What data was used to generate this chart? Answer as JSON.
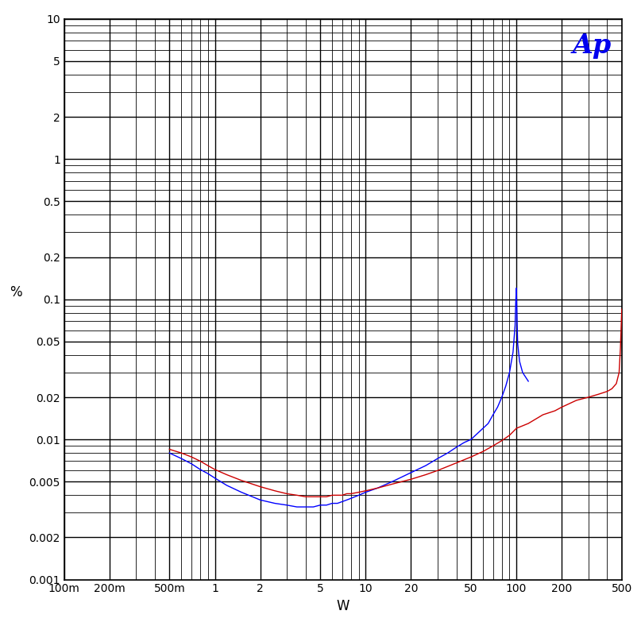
{
  "xlabel": "W",
  "ylabel": "%",
  "xmin": 0.1,
  "xmax": 500,
  "ymin": 0.001,
  "ymax": 10,
  "ap_logo_text": "Ap",
  "blue_curve": {
    "color": "#0000FF",
    "x": [
      0.5,
      0.6,
      0.7,
      0.8,
      0.9,
      1.0,
      1.2,
      1.5,
      2.0,
      2.5,
      3.0,
      3.5,
      4.0,
      4.5,
      5.0,
      5.5,
      6.0,
      6.5,
      7.0,
      7.5,
      8.0,
      9.0,
      10.0,
      12.0,
      15.0,
      20.0,
      25.0,
      30.0,
      35.0,
      40.0,
      45.0,
      50.0,
      55.0,
      60.0,
      65.0,
      70.0,
      75.0,
      80.0,
      85.0,
      90.0,
      95.0,
      98.0,
      99.0,
      100.0,
      101.0,
      102.0,
      105.0,
      110.0,
      120.0
    ],
    "y": [
      0.008,
      0.0073,
      0.0067,
      0.0061,
      0.0057,
      0.0053,
      0.0047,
      0.0042,
      0.0037,
      0.0035,
      0.0034,
      0.0033,
      0.0033,
      0.0033,
      0.0034,
      0.0034,
      0.0035,
      0.0035,
      0.0036,
      0.0037,
      0.0038,
      0.004,
      0.0042,
      0.0045,
      0.005,
      0.0058,
      0.0065,
      0.0073,
      0.008,
      0.0088,
      0.0095,
      0.01,
      0.011,
      0.012,
      0.013,
      0.015,
      0.017,
      0.02,
      0.024,
      0.03,
      0.042,
      0.065,
      0.095,
      0.12,
      0.07,
      0.048,
      0.036,
      0.03,
      0.026
    ]
  },
  "red_curve": {
    "color": "#CC0000",
    "x": [
      0.5,
      0.6,
      0.7,
      0.8,
      0.9,
      1.0,
      1.2,
      1.5,
      2.0,
      2.5,
      3.0,
      3.5,
      4.0,
      4.5,
      5.0,
      5.5,
      6.0,
      6.5,
      7.0,
      7.5,
      8.0,
      9.0,
      10.0,
      12.0,
      15.0,
      20.0,
      25.0,
      30.0,
      40.0,
      50.0,
      60.0,
      70.0,
      80.0,
      90.0,
      100.0,
      120.0,
      150.0,
      180.0,
      200.0,
      250.0,
      300.0,
      350.0,
      400.0,
      430.0,
      460.0,
      480.0,
      490.0,
      498.0,
      500.0
    ],
    "y": [
      0.0085,
      0.008,
      0.0075,
      0.007,
      0.0065,
      0.0061,
      0.0056,
      0.0051,
      0.0046,
      0.0043,
      0.0041,
      0.004,
      0.0039,
      0.0039,
      0.0039,
      0.0039,
      0.004,
      0.004,
      0.004,
      0.0041,
      0.0041,
      0.0042,
      0.0043,
      0.0045,
      0.0048,
      0.0052,
      0.0056,
      0.006,
      0.0068,
      0.0075,
      0.0082,
      0.009,
      0.0098,
      0.0107,
      0.012,
      0.013,
      0.015,
      0.016,
      0.017,
      0.019,
      0.02,
      0.021,
      0.022,
      0.023,
      0.025,
      0.03,
      0.045,
      0.075,
      0.085
    ]
  },
  "background_color": "#ffffff",
  "grid_color": "#000000",
  "x_ticks_major": [
    0.1,
    0.2,
    0.5,
    1,
    2,
    5,
    10,
    20,
    50,
    100,
    200,
    500
  ],
  "x_tick_labels": [
    "100m",
    "200m",
    "500m",
    "1",
    "2",
    "5",
    "10",
    "20",
    "50",
    "100",
    "200",
    "500"
  ],
  "y_ticks_major": [
    0.001,
    0.002,
    0.005,
    0.01,
    0.02,
    0.05,
    0.1,
    0.2,
    0.5,
    1,
    2,
    5,
    10
  ],
  "y_tick_labels": [
    "0.001",
    "0.002",
    "0.005",
    "0.01",
    "0.02",
    "0.05",
    "0.1",
    "0.2",
    "0.5",
    "1",
    "2",
    "5",
    "10"
  ]
}
